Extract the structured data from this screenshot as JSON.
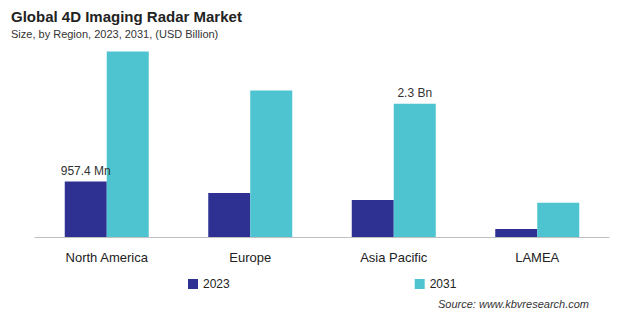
{
  "chart_data": {
    "type": "bar",
    "title": "Global 4D Imaging Radar Market",
    "subtitle": "Size, by Region, 2023, 2031, (USD Billion)",
    "categories": [
      "North America",
      "Europe",
      "Asia Pacific",
      "LAMEA"
    ],
    "series": [
      {
        "name": "2023",
        "color": "#2e3192",
        "values": [
          0.9574,
          0.76,
          0.64,
          0.14
        ]
      },
      {
        "name": "2031",
        "color": "#4dc4cf",
        "values": [
          3.2,
          2.53,
          2.3,
          0.59
        ]
      }
    ],
    "annotations": [
      {
        "category": "North America",
        "series": "2023",
        "text": "957.4 Mn"
      },
      {
        "category": "Asia Pacific",
        "series": "2031",
        "text": "2.3 Bn"
      }
    ],
    "source": "Source: www.kbvresearch.com",
    "ylim": [
      0,
      3.4
    ],
    "grid": false,
    "legend": "bottom",
    "tick_labels": "x"
  }
}
